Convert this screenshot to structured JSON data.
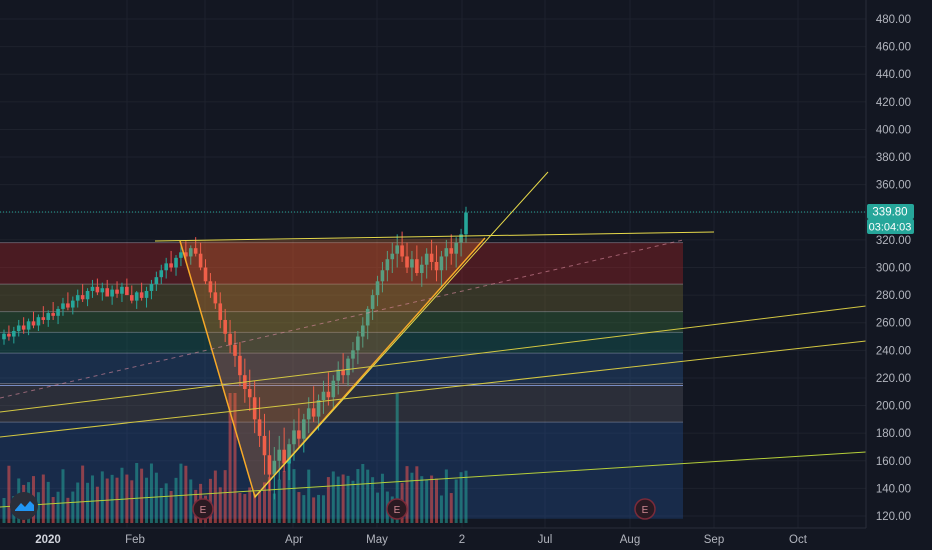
{
  "chart_data": {
    "type": "candlestick",
    "y_axis": {
      "ticks": [
        "480.00",
        "460.00",
        "440.00",
        "420.00",
        "400.00",
        "380.00",
        "360.00",
        "340.00",
        "320.00",
        "300.00",
        "280.00",
        "260.00",
        "240.00",
        "220.00",
        "200.00",
        "180.00",
        "160.00",
        "140.00",
        "120.00"
      ],
      "range": [
        114,
        492
      ]
    },
    "time_axis": {
      "labels": [
        {
          "text": "2020",
          "bold": true
        },
        {
          "text": "Feb",
          "bold": false
        },
        {
          "text": "Apr",
          "bold": false
        },
        {
          "text": "May",
          "bold": false
        },
        {
          "text": "2",
          "bold": false
        },
        {
          "text": "Jul",
          "bold": false
        },
        {
          "text": "Aug",
          "bold": false
        },
        {
          "text": "Sep",
          "bold": false
        },
        {
          "text": "Oct",
          "bold": false
        }
      ]
    },
    "last_price": {
      "value": "339.80",
      "countdown": "03:04:03",
      "color": "#26a69a"
    },
    "earnings_markers": [
      "E",
      "E",
      "E"
    ],
    "candles_approx": [
      [
        248,
        255,
        244,
        252
      ],
      [
        252,
        258,
        247,
        250
      ],
      [
        250,
        257,
        245,
        254
      ],
      [
        254,
        262,
        250,
        258
      ],
      [
        258,
        264,
        252,
        255
      ],
      [
        255,
        263,
        251,
        261
      ],
      [
        261,
        268,
        256,
        258
      ],
      [
        258,
        266,
        254,
        264
      ],
      [
        264,
        272,
        259,
        262
      ],
      [
        262,
        269,
        257,
        267
      ],
      [
        267,
        275,
        262,
        265
      ],
      [
        265,
        272,
        259,
        270
      ],
      [
        270,
        278,
        265,
        274
      ],
      [
        274,
        282,
        269,
        271
      ],
      [
        271,
        279,
        266,
        276
      ],
      [
        276,
        284,
        271,
        280
      ],
      [
        280,
        288,
        275,
        277
      ],
      [
        277,
        285,
        272,
        283
      ],
      [
        283,
        291,
        278,
        286
      ],
      [
        286,
        292,
        280,
        282
      ],
      [
        282,
        289,
        276,
        285
      ],
      [
        285,
        291,
        279,
        279
      ],
      [
        279,
        287,
        273,
        284
      ],
      [
        284,
        290,
        278,
        281
      ],
      [
        281,
        289,
        275,
        286
      ],
      [
        286,
        292,
        280,
        280
      ],
      [
        280,
        287,
        274,
        276
      ],
      [
        276,
        283,
        270,
        282
      ],
      [
        282,
        289,
        276,
        278
      ],
      [
        278,
        286,
        271,
        283
      ],
      [
        283,
        291,
        277,
        288
      ],
      [
        288,
        297,
        283,
        293
      ],
      [
        293,
        302,
        288,
        298
      ],
      [
        298,
        307,
        292,
        303
      ],
      [
        303,
        312,
        297,
        300
      ],
      [
        300,
        309,
        294,
        307
      ],
      [
        307,
        316,
        301,
        311
      ],
      [
        311,
        319,
        305,
        308
      ],
      [
        308,
        316,
        302,
        314
      ],
      [
        314,
        322,
        308,
        310
      ],
      [
        310,
        318,
        298,
        300
      ],
      [
        300,
        306,
        288,
        290
      ],
      [
        290,
        296,
        278,
        282
      ],
      [
        282,
        290,
        270,
        274
      ],
      [
        274,
        282,
        256,
        262
      ],
      [
        262,
        270,
        246,
        252
      ],
      [
        252,
        262,
        238,
        244
      ],
      [
        244,
        254,
        228,
        236
      ],
      [
        236,
        246,
        214,
        222
      ],
      [
        222,
        234,
        202,
        212
      ],
      [
        212,
        226,
        196,
        206
      ],
      [
        206,
        218,
        180,
        190
      ],
      [
        190,
        206,
        170,
        178
      ],
      [
        178,
        194,
        150,
        164
      ],
      [
        164,
        182,
        138,
        150
      ],
      [
        150,
        170,
        132,
        160
      ],
      [
        160,
        178,
        146,
        168
      ],
      [
        168,
        184,
        152,
        158
      ],
      [
        158,
        176,
        146,
        172
      ],
      [
        172,
        190,
        160,
        182
      ],
      [
        182,
        198,
        170,
        176
      ],
      [
        176,
        194,
        166,
        190
      ],
      [
        190,
        206,
        180,
        198
      ],
      [
        198,
        214,
        188,
        192
      ],
      [
        192,
        208,
        182,
        204
      ],
      [
        204,
        218,
        194,
        210
      ],
      [
        210,
        224,
        200,
        206
      ],
      [
        206,
        222,
        198,
        218
      ],
      [
        218,
        232,
        208,
        226
      ],
      [
        226,
        238,
        216,
        222
      ],
      [
        222,
        236,
        214,
        234
      ],
      [
        234,
        246,
        224,
        240
      ],
      [
        240,
        254,
        230,
        250
      ],
      [
        250,
        264,
        242,
        258
      ],
      [
        258,
        272,
        248,
        270
      ],
      [
        270,
        284,
        262,
        280
      ],
      [
        280,
        294,
        272,
        290
      ],
      [
        290,
        304,
        282,
        298
      ],
      [
        298,
        312,
        290,
        306
      ],
      [
        306,
        318,
        296,
        310
      ],
      [
        310,
        324,
        300,
        316
      ],
      [
        316,
        326,
        304,
        308
      ],
      [
        308,
        318,
        296,
        300
      ],
      [
        300,
        312,
        290,
        306
      ],
      [
        306,
        316,
        294,
        296
      ],
      [
        296,
        308,
        286,
        302
      ],
      [
        302,
        314,
        292,
        310
      ],
      [
        310,
        320,
        298,
        304
      ],
      [
        304,
        316,
        290,
        298
      ],
      [
        298,
        312,
        286,
        308
      ],
      [
        308,
        320,
        298,
        314
      ],
      [
        314,
        324,
        302,
        310
      ],
      [
        310,
        322,
        300,
        318
      ],
      [
        318,
        328,
        308,
        324
      ],
      [
        324,
        344,
        318,
        339.8
      ]
    ]
  }
}
